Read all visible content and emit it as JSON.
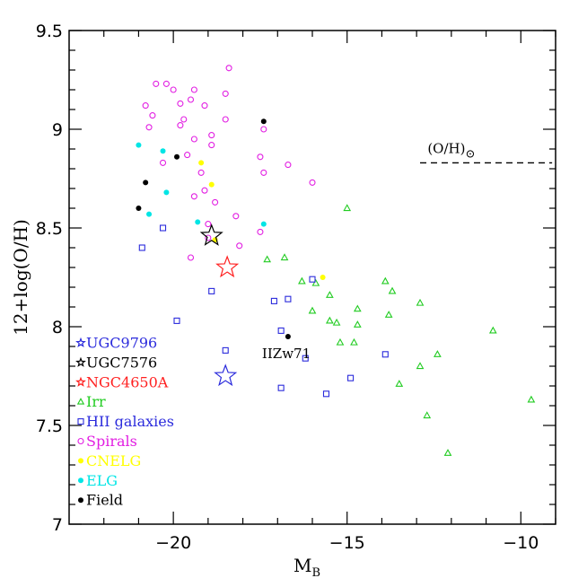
{
  "chart_data": {
    "type": "scatter",
    "xlabel": "M",
    "xlabel_sub": "B",
    "ylabel": "12+log(O/H)",
    "xlim": [
      -23,
      -9
    ],
    "ylim": [
      7,
      9.5
    ],
    "x_ticks": [
      -20,
      -15,
      -10
    ],
    "x_tick_labels": [
      "−20",
      "−15",
      "−10"
    ],
    "y_ticks": [
      7,
      7.5,
      8,
      8.5,
      9,
      9.5
    ],
    "y_tick_labels": [
      "7",
      "7.5",
      "8",
      "8.5",
      "9",
      "9.5"
    ],
    "solar": {
      "label": "(O/H)",
      "symbol": "⊙",
      "value": 8.83,
      "x_range": [
        -12.9,
        -9.1
      ]
    },
    "annotations": [
      {
        "text": "IIZw71",
        "x": -16.8,
        "y": 7.95
      }
    ],
    "series": [
      {
        "name": "UGC9796",
        "marker": "star",
        "color": "#2b2bdc",
        "points": [
          [
            -18.5,
            7.75
          ]
        ]
      },
      {
        "name": "UGC7576",
        "marker": "star",
        "color": "#000000",
        "points": [
          [
            -18.9,
            8.46
          ]
        ]
      },
      {
        "name": "NGC4650A",
        "marker": "star",
        "color": "#ff2020",
        "points": [
          [
            -18.45,
            8.3
          ]
        ]
      },
      {
        "name": "Irr",
        "marker": "triangle",
        "color": "#22cc22",
        "points": [
          [
            -15.0,
            8.6
          ],
          [
            -17.3,
            8.34
          ],
          [
            -16.8,
            8.35
          ],
          [
            -16.3,
            8.23
          ],
          [
            -16.0,
            8.08
          ],
          [
            -15.9,
            8.22
          ],
          [
            -15.5,
            8.16
          ],
          [
            -15.5,
            8.03
          ],
          [
            -15.3,
            8.02
          ],
          [
            -15.2,
            7.92
          ],
          [
            -14.8,
            7.92
          ],
          [
            -14.7,
            8.09
          ],
          [
            -14.7,
            8.01
          ],
          [
            -13.9,
            8.23
          ],
          [
            -13.8,
            8.06
          ],
          [
            -13.7,
            8.18
          ],
          [
            -13.5,
            7.71
          ],
          [
            -12.9,
            8.12
          ],
          [
            -12.9,
            7.8
          ],
          [
            -12.4,
            7.86
          ],
          [
            -12.7,
            7.55
          ],
          [
            -12.1,
            7.36
          ],
          [
            -10.8,
            7.98
          ],
          [
            -9.7,
            7.63
          ]
        ]
      },
      {
        "name": "HII galaxies",
        "marker": "square",
        "color": "#2b2bdc",
        "points": [
          [
            -20.9,
            8.4
          ],
          [
            -20.3,
            8.5
          ],
          [
            -19.9,
            8.03
          ],
          [
            -18.9,
            8.18
          ],
          [
            -18.5,
            7.88
          ],
          [
            -17.1,
            8.13
          ],
          [
            -16.7,
            8.14
          ],
          [
            -16.9,
            7.98
          ],
          [
            -16.9,
            7.69
          ],
          [
            -16.2,
            7.84
          ],
          [
            -16.0,
            8.24
          ],
          [
            -15.6,
            7.66
          ],
          [
            -14.9,
            7.74
          ],
          [
            -13.9,
            7.86
          ]
        ]
      },
      {
        "name": "Spirals",
        "marker": "circle",
        "color": "#e21ee2",
        "points": [
          [
            -20.5,
            9.23
          ],
          [
            -20.2,
            9.23
          ],
          [
            -20.0,
            9.2
          ],
          [
            -19.7,
            9.05
          ],
          [
            -19.5,
            9.15
          ],
          [
            -19.8,
            9.13
          ],
          [
            -19.4,
            9.2
          ],
          [
            -19.4,
            8.95
          ],
          [
            -19.8,
            9.02
          ],
          [
            -19.1,
            9.12
          ],
          [
            -18.4,
            9.31
          ],
          [
            -18.5,
            9.18
          ],
          [
            -18.5,
            9.05
          ],
          [
            -18.9,
            8.97
          ],
          [
            -18.9,
            8.92
          ],
          [
            -19.6,
            8.87
          ],
          [
            -20.3,
            8.83
          ],
          [
            -20.6,
            9.07
          ],
          [
            -20.8,
            9.12
          ],
          [
            -20.7,
            9.01
          ],
          [
            -19.2,
            8.78
          ],
          [
            -19.1,
            8.69
          ],
          [
            -19.4,
            8.66
          ],
          [
            -18.8,
            8.63
          ],
          [
            -19.0,
            8.52
          ],
          [
            -18.2,
            8.56
          ],
          [
            -17.5,
            8.86
          ],
          [
            -17.4,
            9.0
          ],
          [
            -17.4,
            8.78
          ],
          [
            -16.7,
            8.82
          ],
          [
            -16.0,
            8.73
          ],
          [
            -17.5,
            8.48
          ],
          [
            -18.1,
            8.41
          ],
          [
            -19.0,
            8.45
          ],
          [
            -19.5,
            8.35
          ]
        ]
      },
      {
        "name": "CNELG",
        "marker": "dot",
        "color": "#ffff00",
        "points": [
          [
            -19.2,
            8.83
          ],
          [
            -18.9,
            8.72
          ],
          [
            -18.8,
            8.44
          ],
          [
            -15.7,
            8.25
          ]
        ]
      },
      {
        "name": "ELG",
        "marker": "dot",
        "color": "#00e5e5",
        "points": [
          [
            -21.0,
            8.92
          ],
          [
            -20.3,
            8.89
          ],
          [
            -20.2,
            8.68
          ],
          [
            -20.7,
            8.57
          ],
          [
            -19.3,
            8.53
          ],
          [
            -17.4,
            8.52
          ]
        ]
      },
      {
        "name": "Field",
        "marker": "dot",
        "color": "#000000",
        "points": [
          [
            -20.8,
            8.73
          ],
          [
            -21.0,
            8.6
          ],
          [
            -19.9,
            8.86
          ],
          [
            -17.4,
            9.04
          ],
          [
            -16.7,
            7.95
          ]
        ]
      }
    ],
    "legend_position": "bottom-left",
    "legend_order": [
      "UGC9796",
      "UGC7576",
      "NGC4650A",
      "Irr",
      "HII galaxies",
      "Spirals",
      "CNELG",
      "ELG",
      "Field"
    ]
  }
}
